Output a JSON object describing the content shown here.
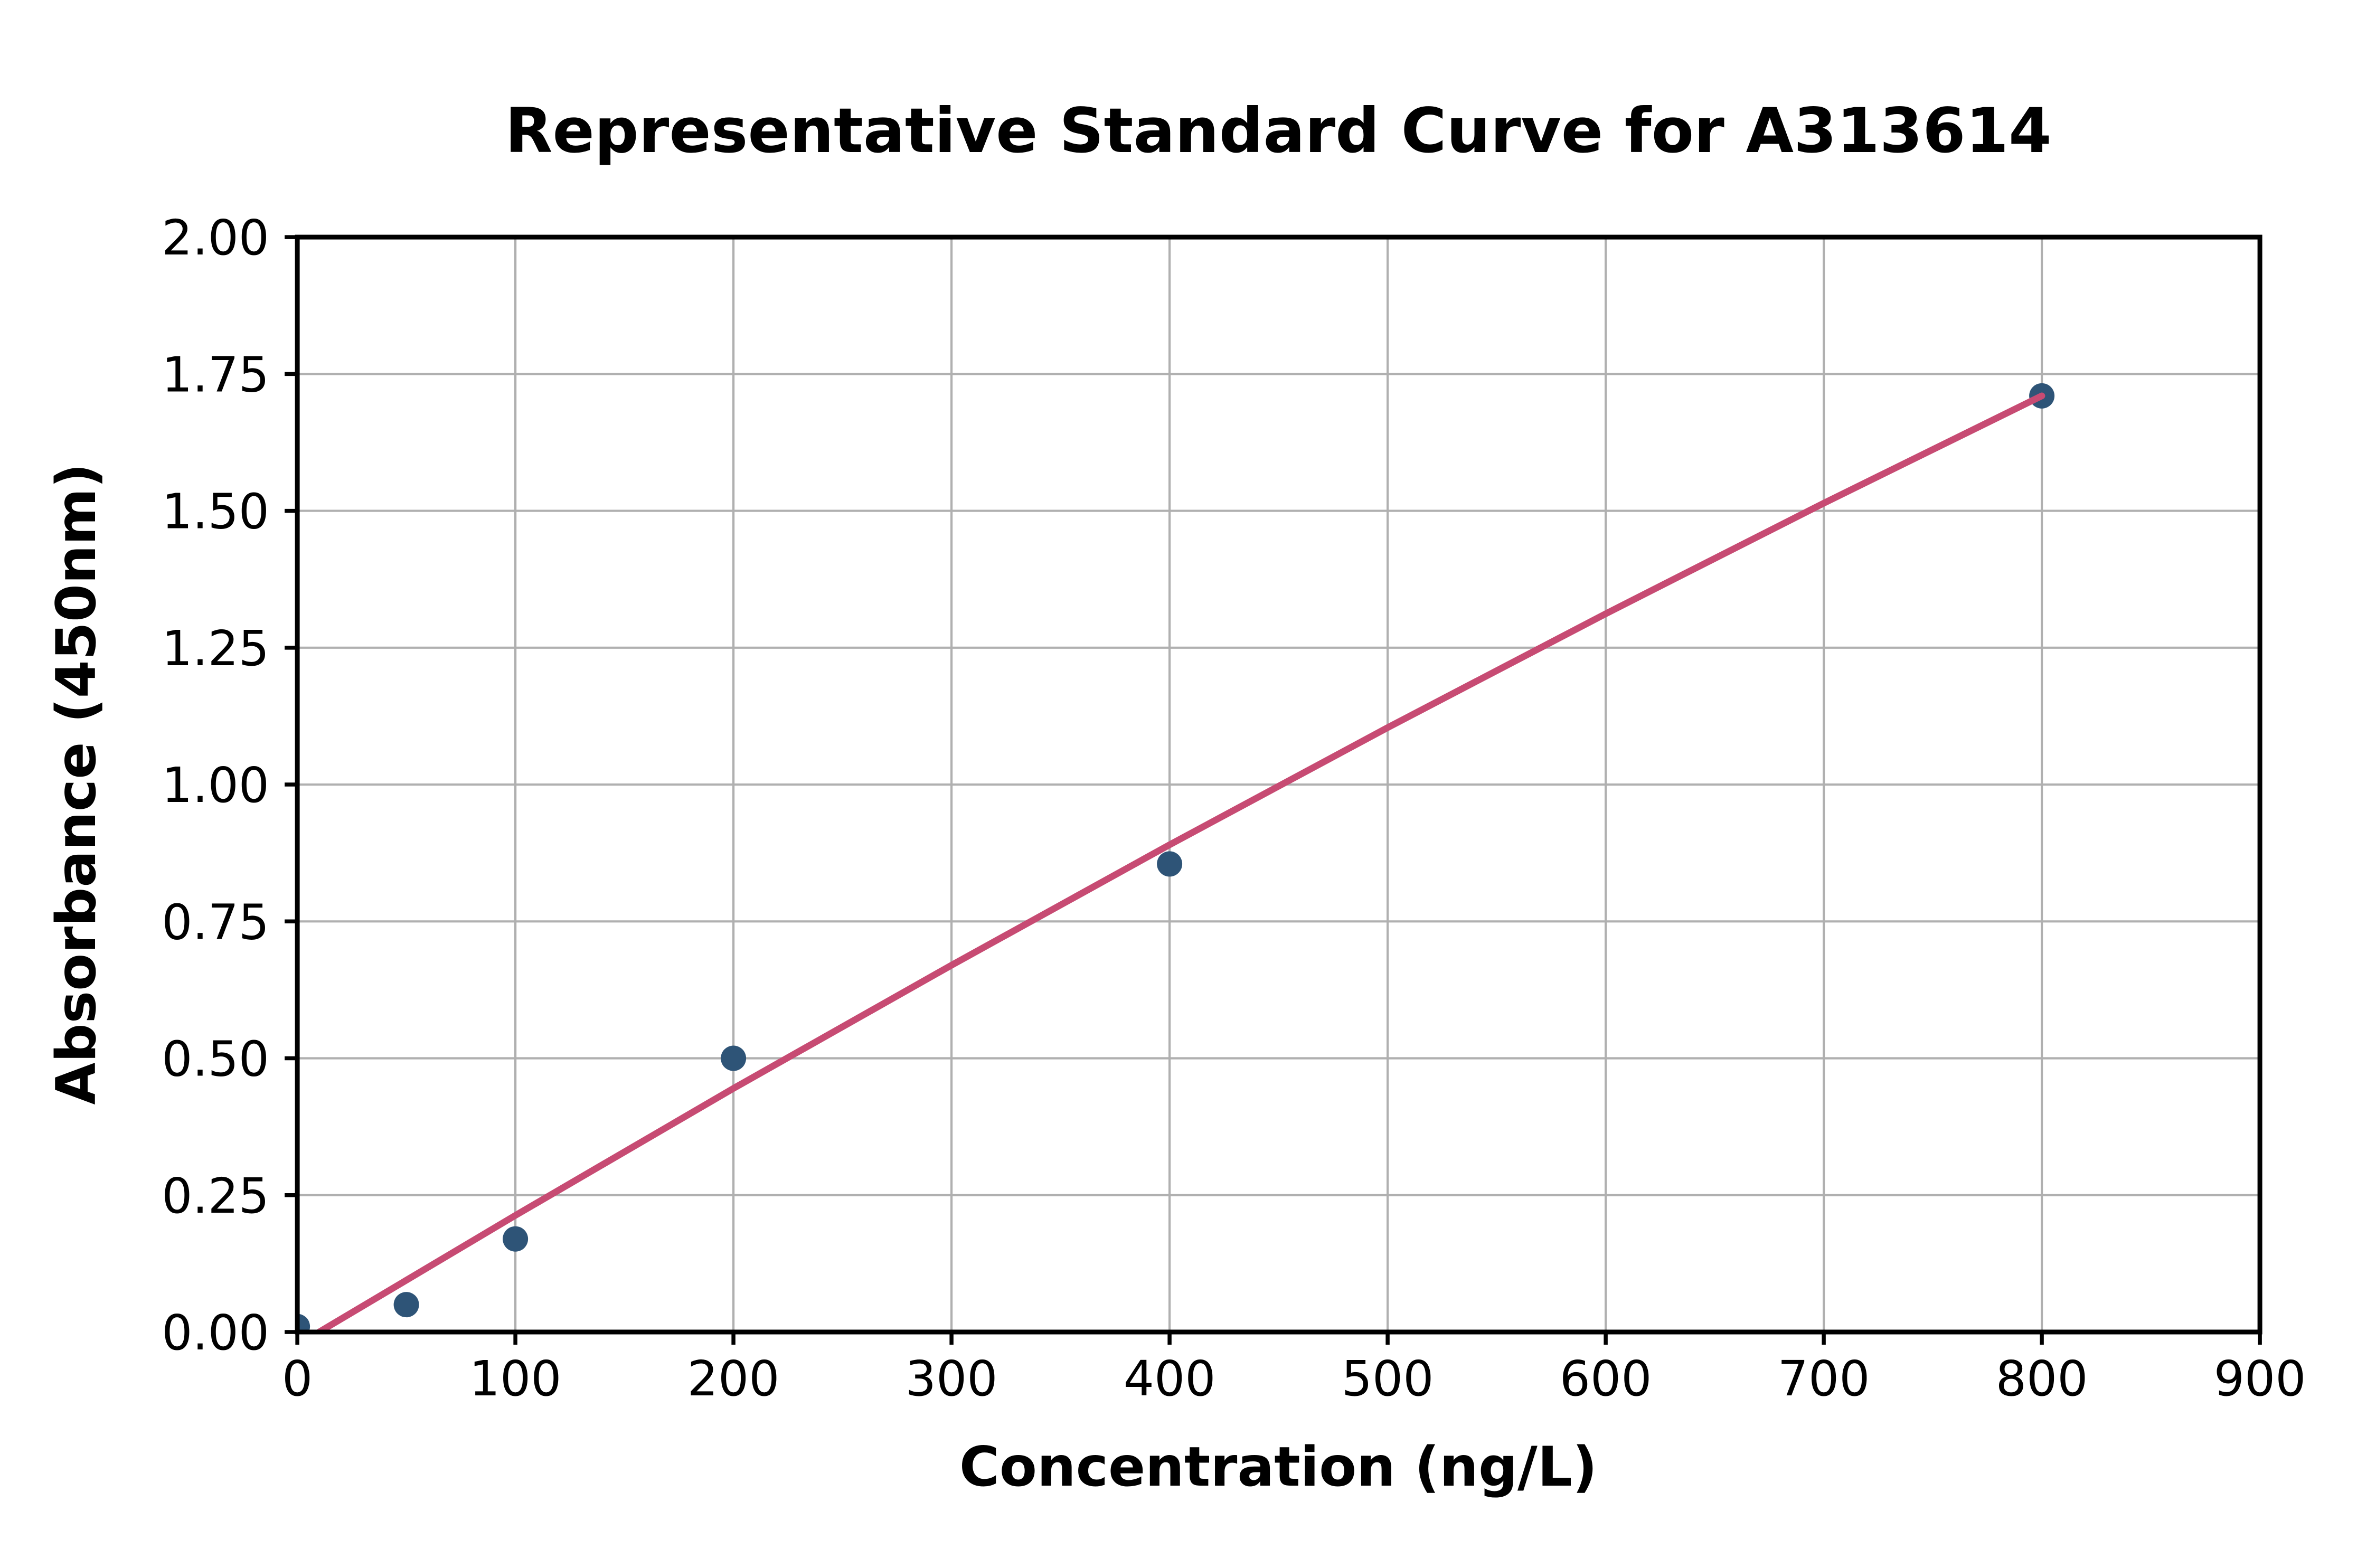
{
  "figure": {
    "background": "#ffffff"
  },
  "chart_data": {
    "type": "scatter",
    "title": "Representative Standard Curve for A313614",
    "xlabel": "Concentration (ng/L)",
    "ylabel": "Absorbance (450nm)",
    "xlim": [
      0,
      900
    ],
    "ylim": [
      0,
      2.0
    ],
    "xticks": [
      0,
      100,
      200,
      300,
      400,
      500,
      600,
      700,
      800,
      900
    ],
    "xtick_labels": [
      "0",
      "100",
      "200",
      "300",
      "400",
      "500",
      "600",
      "700",
      "800",
      "900"
    ],
    "yticks": [
      0,
      0.25,
      0.5,
      0.75,
      1.0,
      1.25,
      1.5,
      1.75,
      2.0
    ],
    "ytick_labels": [
      "0.00",
      "0.25",
      "0.50",
      "0.75",
      "1.00",
      "1.25",
      "1.50",
      "1.75",
      "2.00"
    ],
    "grid": true,
    "legend": false,
    "grid_color": "#b0b0b0",
    "axis_color": "#000000",
    "background": "#ffffff",
    "series": [
      {
        "name": "standard-points",
        "type": "scatter",
        "color": "#2e5477",
        "x": [
          0,
          50,
          100,
          200,
          400,
          800
        ],
        "y": [
          0.01,
          0.05,
          0.17,
          0.5,
          0.855,
          1.71
        ]
      },
      {
        "name": "fit-line",
        "type": "line",
        "color": "#c74b73",
        "x": [
          10,
          100,
          200,
          300,
          400,
          500,
          600,
          700,
          800
        ],
        "y": [
          0.0,
          0.213,
          0.445,
          0.67,
          0.89,
          1.104,
          1.312,
          1.514,
          1.71
        ]
      }
    ]
  }
}
